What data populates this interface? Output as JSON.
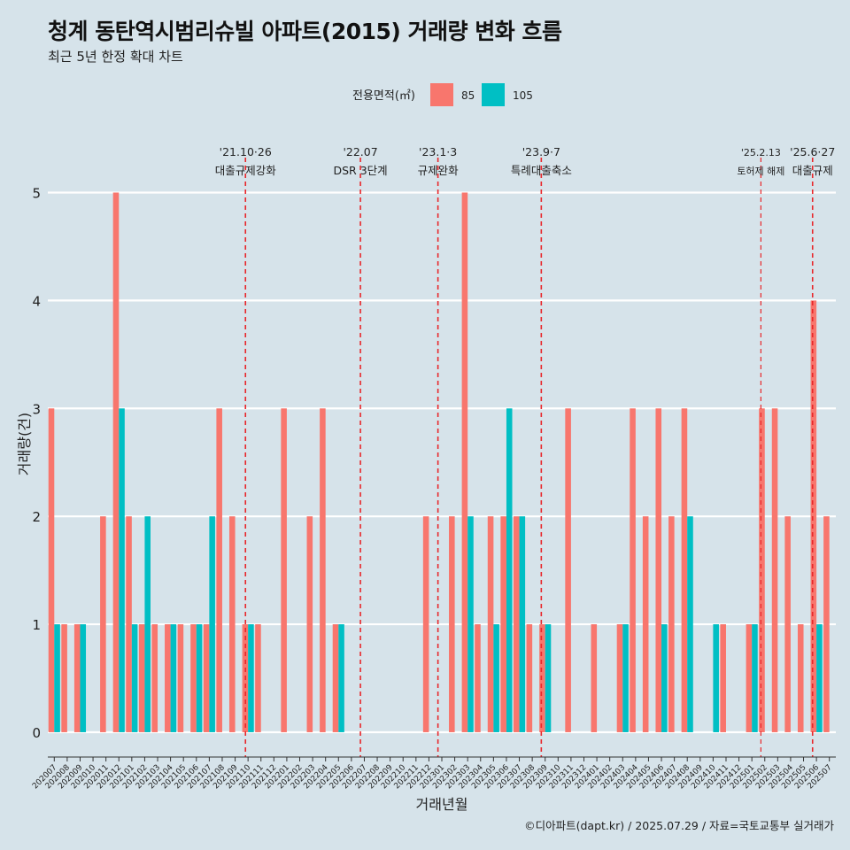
{
  "title": "청계 동탄역시범리슈빌 아파트(2015) 거래량 변화 흐름",
  "subtitle": "최근 5년 한정 확대 차트",
  "caption": "©디아파트(dapt.kr) / 2025.07.29 / 자료=국토교통부 실거래가",
  "colors": {
    "s85": "#f8766d",
    "s105": "#00bfc4",
    "vline": "#e8272b",
    "grid": "#ffffff",
    "text": "#222222"
  },
  "chart_data": {
    "type": "bar",
    "title": "청계 동탄역시범리슈빌 아파트(2015) 거래량 변화 흐름",
    "xlabel": "거래년월",
    "ylabel": "거래량(건)",
    "ylim": [
      -0.23,
      5.57
    ],
    "yticks": [
      0,
      1,
      2,
      3,
      4,
      5
    ],
    "legend": {
      "title": "전용면적(㎡)",
      "entries": [
        "85",
        "105"
      ],
      "position": "top"
    },
    "categories": [
      "202007",
      "202008",
      "202009",
      "202010",
      "202011",
      "202012",
      "202101",
      "202102",
      "202103",
      "202104",
      "202105",
      "202106",
      "202107",
      "202108",
      "202109",
      "202110",
      "202111",
      "202112",
      "202201",
      "202202",
      "202203",
      "202204",
      "202205",
      "202206",
      "202207",
      "202208",
      "202209",
      "202210",
      "202211",
      "202212",
      "202301",
      "202302",
      "202303",
      "202304",
      "202305",
      "202306",
      "202307",
      "202308",
      "202309",
      "202310",
      "202311",
      "202312",
      "202401",
      "202402",
      "202403",
      "202404",
      "202405",
      "202406",
      "202407",
      "202408",
      "202409",
      "202410",
      "202411",
      "202412",
      "202501",
      "202502",
      "202503",
      "202504",
      "202505",
      "202506",
      "202507"
    ],
    "series": [
      {
        "name": "85",
        "values": [
          3,
          1,
          1,
          0,
          2,
          5,
          2,
          1,
          1,
          1,
          1,
          1,
          1,
          3,
          2,
          1,
          1,
          0,
          3,
          0,
          2,
          3,
          1,
          0,
          0,
          0,
          0,
          0,
          0,
          2,
          0,
          2,
          5,
          1,
          2,
          2,
          2,
          1,
          1,
          0,
          3,
          0,
          1,
          0,
          1,
          3,
          2,
          3,
          2,
          3,
          0,
          0,
          1,
          0,
          1,
          3,
          3,
          2,
          1,
          4,
          2
        ]
      },
      {
        "name": "105",
        "values": [
          1,
          0,
          1,
          0,
          0,
          3,
          1,
          2,
          0,
          1,
          0,
          1,
          2,
          0,
          0,
          1,
          0,
          0,
          0,
          0,
          0,
          0,
          1,
          0,
          0,
          0,
          0,
          0,
          0,
          0,
          0,
          0,
          2,
          0,
          1,
          3,
          2,
          0,
          1,
          0,
          0,
          0,
          0,
          0,
          1,
          0,
          0,
          1,
          0,
          2,
          0,
          1,
          0,
          0,
          1,
          0,
          0,
          0,
          0,
          1,
          0
        ]
      }
    ],
    "annotations": [
      {
        "x": 15.3,
        "date": "'21.10·26",
        "label": "대출규제강화",
        "small": false
      },
      {
        "x": 24.2,
        "date": "'22.07",
        "label": "DSR 3단계",
        "small": false
      },
      {
        "x": 30.2,
        "date": "'23.1·3",
        "label": "규제완화",
        "small": false
      },
      {
        "x": 38.2,
        "date": "'23.9·7",
        "label": "특례대출축소",
        "small": false
      },
      {
        "x": 55.2,
        "date": "'25.2.13",
        "label": "토허제 해제",
        "small": true
      },
      {
        "x": 59.2,
        "date": "'25.6·27",
        "label": "대출규제",
        "small": false
      }
    ]
  }
}
